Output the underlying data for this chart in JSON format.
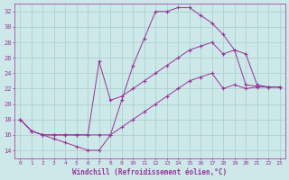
{
  "xlabel": "Windchill (Refroidissement éolien,°C)",
  "background_color": "#cce8e8",
  "grid_color": "#aacccc",
  "line_color": "#993399",
  "xlim": [
    -0.5,
    23.5
  ],
  "ylim": [
    13,
    33
  ],
  "yticks": [
    14,
    16,
    18,
    20,
    22,
    24,
    26,
    28,
    30,
    32
  ],
  "xticks": [
    0,
    1,
    2,
    3,
    4,
    5,
    6,
    7,
    8,
    9,
    10,
    11,
    12,
    13,
    14,
    15,
    16,
    17,
    18,
    19,
    20,
    21,
    22,
    23
  ],
  "line1_x": [
    0,
    1,
    2,
    3,
    4,
    5,
    6,
    7,
    8,
    9,
    10,
    11,
    12,
    13,
    14,
    15,
    16,
    17,
    18,
    19,
    20,
    21,
    22,
    23
  ],
  "line1_y": [
    18.0,
    16.5,
    16.0,
    15.5,
    15.0,
    14.5,
    14.0,
    14.0,
    16.0,
    20.5,
    25.0,
    28.5,
    32.0,
    32.0,
    32.5,
    32.5,
    31.5,
    30.5,
    29.0,
    27.0,
    22.5,
    22.3,
    22.2,
    22.2
  ],
  "line2_x": [
    0,
    1,
    2,
    3,
    4,
    5,
    6,
    7,
    8,
    9,
    10,
    11,
    12,
    13,
    14,
    15,
    16,
    17,
    18,
    19,
    20,
    21,
    22,
    23
  ],
  "line2_y": [
    18.0,
    16.5,
    16.0,
    16.0,
    16.0,
    16.0,
    16.0,
    25.5,
    20.5,
    21.0,
    22.0,
    23.0,
    24.0,
    25.0,
    26.0,
    27.0,
    27.5,
    28.0,
    26.5,
    27.0,
    26.5,
    22.5,
    22.2,
    22.2
  ],
  "line3_x": [
    0,
    1,
    2,
    3,
    4,
    5,
    6,
    7,
    8,
    9,
    10,
    11,
    12,
    13,
    14,
    15,
    16,
    17,
    18,
    19,
    20,
    21,
    22,
    23
  ],
  "line3_y": [
    18.0,
    16.5,
    16.0,
    16.0,
    16.0,
    16.0,
    16.0,
    16.0,
    16.0,
    17.0,
    18.0,
    19.0,
    20.0,
    21.0,
    22.0,
    23.0,
    23.5,
    24.0,
    22.0,
    22.5,
    22.0,
    22.2,
    22.2,
    22.2
  ]
}
